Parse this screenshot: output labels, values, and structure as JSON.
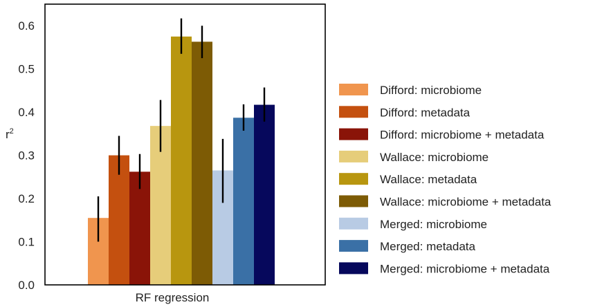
{
  "chart_data": {
    "type": "bar",
    "title": "",
    "xlabel": "",
    "ylabel": "r",
    "ylabel_superscript": "2",
    "categories": [
      "RF regression"
    ],
    "ylim": [
      0,
      0.65
    ],
    "yticks": [
      0.0,
      0.1,
      0.2,
      0.3,
      0.4,
      0.5,
      0.6
    ],
    "ytick_labels": [
      "0.0",
      "0.1",
      "0.2",
      "0.3",
      "0.4",
      "0.5",
      "0.6"
    ],
    "grid": false,
    "legend_position": "right",
    "series": [
      {
        "name": "Difford: microbiome",
        "value": 0.155,
        "err_low": 0.1,
        "err_high": 0.205,
        "color": "#F0954E"
      },
      {
        "name": "Difford: metadata",
        "value": 0.3,
        "err_low": 0.255,
        "err_high": 0.345,
        "color": "#C4500F"
      },
      {
        "name": "Difford: microbiome + metadata",
        "value": 0.262,
        "err_low": 0.222,
        "err_high": 0.303,
        "color": "#8A1408"
      },
      {
        "name": "Wallace: microbiome",
        "value": 0.368,
        "err_low": 0.308,
        "err_high": 0.428,
        "color": "#E6CD7A"
      },
      {
        "name": "Wallace: metadata",
        "value": 0.575,
        "err_low": 0.535,
        "err_high": 0.617,
        "color": "#B8960F"
      },
      {
        "name": "Wallace: microbiome + metadata",
        "value": 0.563,
        "err_low": 0.525,
        "err_high": 0.6,
        "color": "#7D5B05"
      },
      {
        "name": "Merged: microbiome",
        "value": 0.265,
        "err_low": 0.19,
        "err_high": 0.338,
        "color": "#B8CBE4"
      },
      {
        "name": "Merged: metadata",
        "value": 0.387,
        "err_low": 0.357,
        "err_high": 0.418,
        "color": "#3A70A6"
      },
      {
        "name": "Merged: microbiome + metadata",
        "value": 0.417,
        "err_low": 0.378,
        "err_high": 0.457,
        "color": "#06085C"
      }
    ]
  }
}
